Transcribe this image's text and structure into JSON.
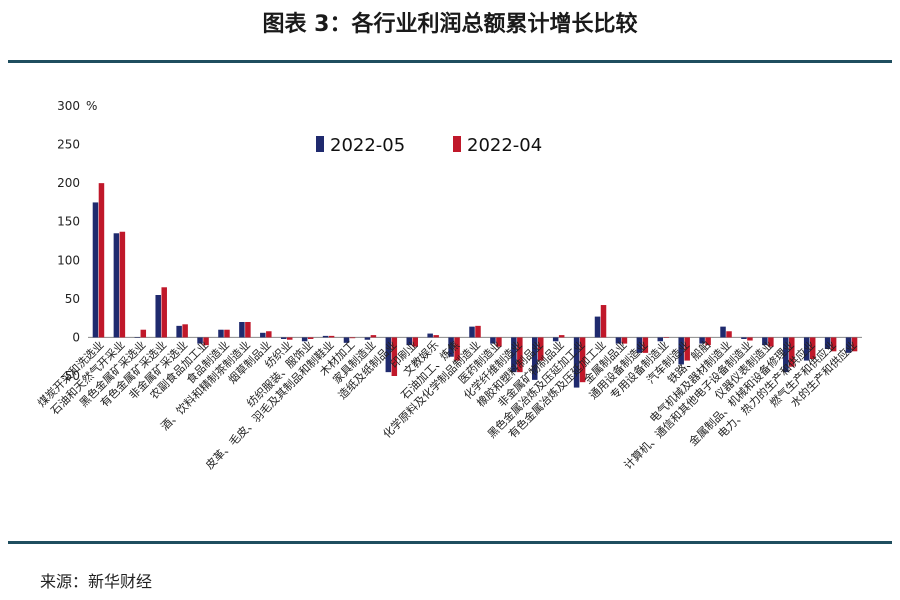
{
  "title": "图表 3：各行业利润总额累计增长比较",
  "source": "来源：新华财经",
  "colors": {
    "series1": "#1f2a6e",
    "series2": "#c0182a",
    "rule": "#1f4e5f"
  },
  "chart_data": {
    "type": "bar",
    "ylabel": "%",
    "ylim": [
      -50,
      300
    ],
    "yticks": [
      300,
      250,
      200,
      150,
      100,
      50,
      0,
      -50
    ],
    "grid": false,
    "legend_position": "top-center",
    "categories": [
      "煤炭开采和洗选业",
      "石油和天然气开采业",
      "黑色金属矿采选业",
      "有色金属矿采选业",
      "非金属矿采选业",
      "农副食品加工业",
      "食品制造业",
      "酒、饮料和精制茶制造业",
      "烟草制品业",
      "纺织业",
      "纺织服装、服饰业",
      "皮革、毛皮、羽毛及其制品和制鞋业",
      "木材加工",
      "家具制造业",
      "造纸及纸制品业",
      "印刷业",
      "文教娱乐",
      "石油加工、炼焦",
      "化学原料及化学制品制造业",
      "医药制造业",
      "化学纤维制造业",
      "橡胶和塑料制品业",
      "非金属矿物制品业",
      "黑色金属冶炼及压延加工业",
      "有色金属冶炼及压延加工业",
      "金属制品业",
      "通用设备制造业",
      "专用设备制造业",
      "汽车制造业",
      "铁路、船舶",
      "电气机械及器材制造业",
      "计算机、通信和其他电子设备制造业",
      "仪器仪表制造业",
      "金属制品、机械和设备修理业",
      "电力、热力的生产和供应业",
      "燃气生产和供应业",
      "水的生产和供应业"
    ],
    "series": [
      {
        "name": "2022-05",
        "values": [
          175,
          135,
          0,
          55,
          15,
          -8,
          10,
          20,
          6,
          -2,
          -5,
          2,
          -7,
          -3,
          -45,
          -10,
          5,
          -25,
          14,
          -8,
          -45,
          -55,
          -5,
          -65,
          27,
          -8,
          -20,
          -5,
          -35,
          -8,
          14,
          -2,
          -10,
          -45,
          -30,
          -15,
          -20
        ]
      },
      {
        "name": "2022-04",
        "values": [
          200,
          137,
          10,
          65,
          17,
          -10,
          10,
          20,
          8,
          -3,
          -2,
          2,
          -1,
          3,
          -50,
          -12,
          3,
          -30,
          15,
          -12,
          -45,
          -30,
          3,
          -58,
          42,
          -8,
          -20,
          0,
          -30,
          -10,
          8,
          -4,
          -12,
          -38,
          -28,
          -18,
          -18
        ]
      }
    ]
  }
}
